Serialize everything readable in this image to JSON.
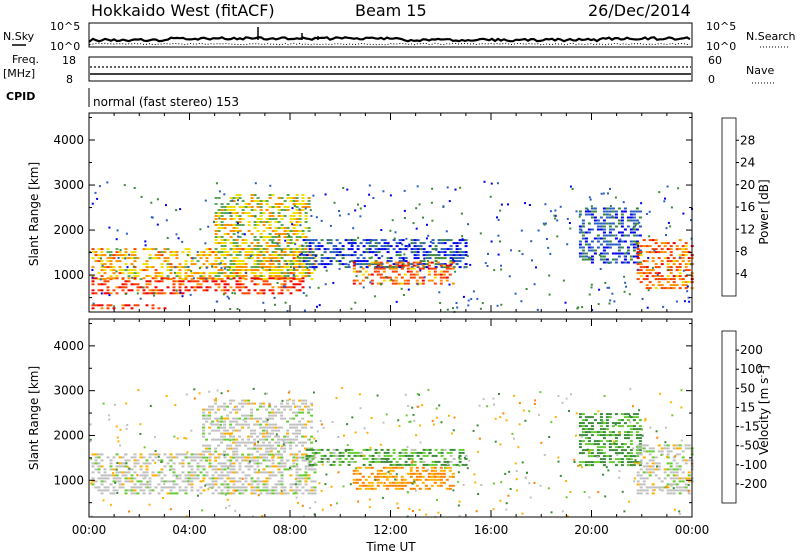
{
  "header": {
    "station": "Hokkaido West (fitACF)",
    "beam": "Beam 15",
    "date": "26/Dec/2014"
  },
  "status_panels": {
    "nsky_label": "N.Sky",
    "nsky_ticks": [
      "10^5",
      "10^0"
    ],
    "nsearch_label": "N.Search",
    "nsearch_ticks": [
      "10^5",
      "10^0"
    ],
    "freq_label": "Freq.",
    "freq_unit": "[MHz]",
    "freq_ticks": [
      "18",
      "8"
    ],
    "nave_label": "Nave",
    "nave_ticks": [
      "60",
      "0"
    ],
    "cpid_label": "CPID",
    "cpid_value": "normal (fast stereo) 153"
  },
  "chart_data": [
    {
      "type": "heatmap",
      "name": "power",
      "xlabel": "",
      "ylabel": "Slant Range [km]",
      "xlim_hours": [
        0,
        24
      ],
      "ylim": [
        180,
        4600
      ],
      "yticks": [
        "1000",
        "2000",
        "3000",
        "4000"
      ],
      "colorbar_label": "Power [dB]",
      "colorbar_ticks": [
        "4",
        "8",
        "12",
        "16",
        "20",
        "24",
        "28"
      ],
      "colorbar_colors": [
        "#0000ee",
        "#2a5fc0",
        "#3a8a3a",
        "#5aaa5a",
        "#f0e000",
        "#ff9000",
        "#ff4000",
        "#ee0000"
      ],
      "regions": [
        {
          "t0": 0.1,
          "t1": 9.0,
          "r0": 900,
          "r1": 1600,
          "level": 20
        },
        {
          "t0": 0.1,
          "t1": 8.5,
          "r0": 600,
          "r1": 950,
          "level": 27
        },
        {
          "t0": 5.0,
          "t1": 8.8,
          "r0": 1000,
          "r1": 2800,
          "level": 18
        },
        {
          "t0": 8.5,
          "t1": 15.0,
          "r0": 1200,
          "r1": 1800,
          "level": 5
        },
        {
          "t0": 10.5,
          "t1": 14.5,
          "r0": 800,
          "r1": 1300,
          "level": 24
        },
        {
          "t0": 19.5,
          "t1": 22.0,
          "r0": 1300,
          "r1": 2500,
          "level": 6
        },
        {
          "t0": 21.8,
          "t1": 24.0,
          "r0": 700,
          "r1": 1800,
          "level": 24
        },
        {
          "t0": 0.1,
          "t1": 3.0,
          "r0": 250,
          "r1": 350,
          "level": 28
        }
      ]
    },
    {
      "type": "heatmap",
      "name": "velocity",
      "xlabel": "Time UT",
      "ylabel": "Slant Range [km]",
      "xlim_hours": [
        0,
        24
      ],
      "ylim": [
        180,
        4600
      ],
      "xticks": [
        "00:00",
        "04:00",
        "08:00",
        "12:00",
        "16:00",
        "20:00",
        "00:00"
      ],
      "yticks": [
        "1000",
        "2000",
        "3000",
        "4000"
      ],
      "colorbar_label": "Velocity [m s",
      "colorbar_unit_sup": "-1",
      "colorbar_unit_close": "]",
      "colorbar_ticks": [
        "200",
        "100",
        "50",
        "15",
        "-15",
        "-50",
        "-100",
        "-200"
      ],
      "colorbar_colors": [
        "#2040c0",
        "#3a7fd0",
        "#3a8a3a",
        "#66cc33",
        "#c0c0c0",
        "#ffb000",
        "#ff8000",
        "#ff3000",
        "#e00000"
      ],
      "regions": [
        {
          "t0": 0.1,
          "t1": 9.0,
          "r0": 700,
          "r1": 1600,
          "level": 0
        },
        {
          "t0": 4.5,
          "t1": 8.8,
          "r0": 1400,
          "r1": 2800,
          "level": 0
        },
        {
          "t0": 10.5,
          "t1": 14.5,
          "r0": 800,
          "r1": 1300,
          "level": -50
        },
        {
          "t0": 8.5,
          "t1": 15.0,
          "r0": 1300,
          "r1": 1700,
          "level": 30
        },
        {
          "t0": 19.5,
          "t1": 22.0,
          "r0": 1300,
          "r1": 2500,
          "level": 40
        },
        {
          "t0": 21.8,
          "t1": 24.0,
          "r0": 700,
          "r1": 1800,
          "level": 0
        }
      ]
    }
  ]
}
